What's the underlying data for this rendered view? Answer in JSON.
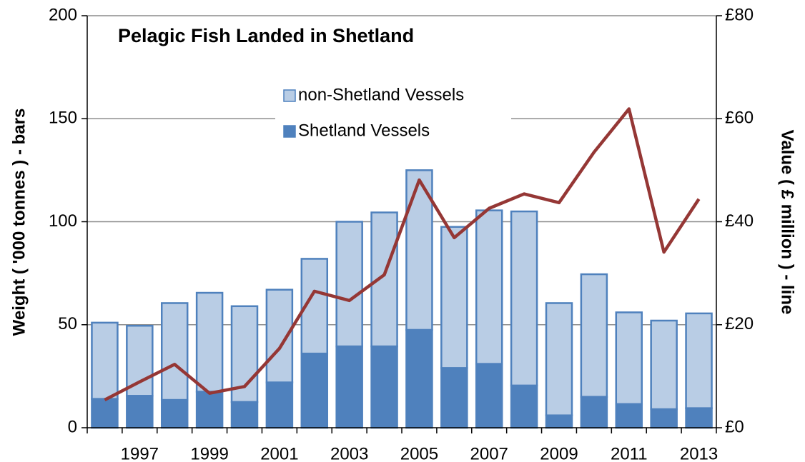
{
  "chart_data": {
    "type": "bar",
    "title": "Pelagic Fish Landed in Shetland",
    "y_label": "Weight ( '000 tonnes ) - bars",
    "y2_label": "Value ( £ million ) - line",
    "categories": [
      null,
      "1997",
      null,
      "1999",
      null,
      "2001",
      null,
      "2003",
      null,
      "2005",
      null,
      "2007",
      null,
      "2009",
      null,
      "2011",
      null,
      "2013"
    ],
    "series": [
      {
        "name": "non-Shetland Vessels",
        "type": "bar",
        "color": "#b9cde5",
        "values": [
          37,
          34,
          47,
          48,
          46.5,
          45,
          46,
          60.5,
          65,
          77.5,
          68.5,
          74.5,
          84.5,
          54.5,
          59.5,
          44.5,
          43,
          46
        ]
      },
      {
        "name": "Shetland Vessels",
        "type": "bar",
        "color": "#4f81bd",
        "values": [
          14,
          15.5,
          13.5,
          17.5,
          12.5,
          22,
          36,
          39.5,
          39.5,
          47.5,
          29,
          31,
          20.5,
          6,
          15,
          11.5,
          9,
          9.5
        ]
      },
      {
        "type": "line",
        "axis": "y2",
        "color": "#953735",
        "values": [
          5.4,
          8.9,
          12.3,
          6.7,
          8,
          15.4,
          26.5,
          24.7,
          29.7,
          48.1,
          36.9,
          42.6,
          45.4,
          43.7,
          53.5,
          61.9,
          34.1,
          44.4
        ]
      }
    ],
    "stacked": true,
    "ylim": [
      0,
      200
    ],
    "yticks": [
      0,
      50,
      100,
      150,
      200
    ],
    "y2lim": [
      0,
      80
    ],
    "y2ticks": [
      {
        "value": 0,
        "label": "£0"
      },
      {
        "value": 20,
        "label": "£20"
      },
      {
        "value": 40,
        "label": "£40"
      },
      {
        "value": 60,
        "label": "£60"
      },
      {
        "value": 80,
        "label": "£80"
      }
    ],
    "grid": true,
    "legend": "top"
  }
}
